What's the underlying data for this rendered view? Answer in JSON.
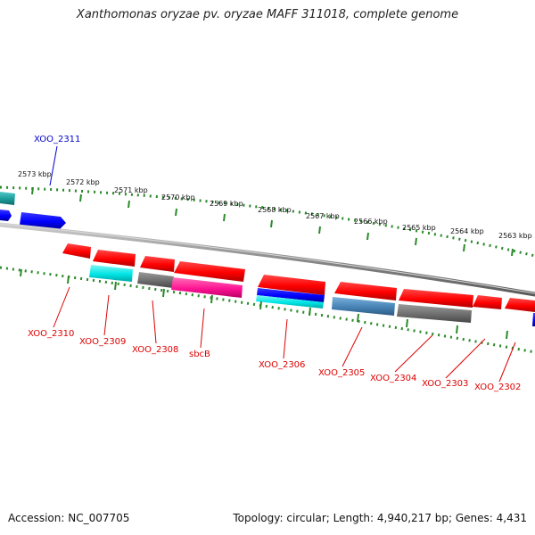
{
  "header": {
    "title": "Xanthomonas oryzae pv. oryzae MAFF 311018, complete genome"
  },
  "footer": {
    "accession": "Accession: NC_007705",
    "summary": "Topology: circular; Length: 4,940,217 bp; Genes: 4,431"
  },
  "scale_labels": [
    "2573 kbp",
    "2572 kbp",
    "2571 kbp",
    "2570 kbp",
    "2569 kbp",
    "2568 kbp",
    "2567 kbp",
    "2566 kbp",
    "2565 kbp",
    "2564 kbp",
    "2563 kbp"
  ],
  "upper_gene_label": "XOO_2311",
  "gene_labels": [
    "XOO_2310",
    "XOO_2309",
    "XOO_2308",
    "sbcB",
    "XOO_2306",
    "XOO_2305",
    "XOO_2304",
    "XOO_2303",
    "XOO_2302"
  ],
  "colors": {
    "red": "#ff0000",
    "blue": "#0000ff",
    "cyan": "#00e5e5",
    "teal": "#1a9b9b",
    "magenta": "#ff1493",
    "gray": "#6e6e6e",
    "steel_blue": "#4682b4",
    "backbone": "#8a8a8a",
    "tick": "#2a8a2a"
  }
}
